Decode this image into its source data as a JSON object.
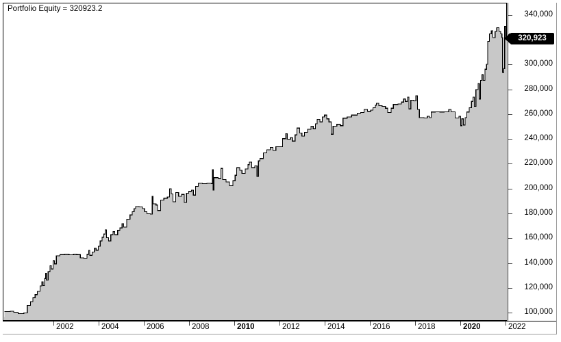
{
  "title": {
    "label": "Portfolio Equity = 320923.2"
  },
  "last_value_marker": {
    "label": "320,923",
    "value": 320923.2,
    "bg": "#000000",
    "text_color": "#ffffff"
  },
  "y_axis": {
    "ticks": [
      {
        "label": "340,000",
        "value": 340000
      },
      {
        "label": "300,000",
        "value": 300000
      },
      {
        "label": "280,000",
        "value": 280000
      },
      {
        "label": "260,000",
        "value": 260000
      },
      {
        "label": "240,000",
        "value": 240000
      },
      {
        "label": "220,000",
        "value": 220000
      },
      {
        "label": "200,000",
        "value": 200000
      },
      {
        "label": "180,000",
        "value": 180000
      },
      {
        "label": "160,000",
        "value": 160000
      },
      {
        "label": "140,000",
        "value": 140000
      },
      {
        "label": "120,000",
        "value": 120000
      },
      {
        "label": "100,000",
        "value": 100000
      }
    ]
  },
  "x_axis": {
    "ticks": [
      {
        "label": "2002",
        "year": 2002,
        "bold": false
      },
      {
        "label": "2004",
        "year": 2004,
        "bold": false
      },
      {
        "label": "2006",
        "year": 2006,
        "bold": false
      },
      {
        "label": "2008",
        "year": 2008,
        "bold": false
      },
      {
        "label": "2010",
        "year": 2010,
        "bold": true
      },
      {
        "label": "2012",
        "year": 2012,
        "bold": false
      },
      {
        "label": "2014",
        "year": 2014,
        "bold": false
      },
      {
        "label": "2016",
        "year": 2016,
        "bold": false
      },
      {
        "label": "2018",
        "year": 2018,
        "bold": false
      },
      {
        "label": "2020",
        "year": 2020,
        "bold": true
      },
      {
        "label": "2022",
        "year": 2022,
        "bold": false
      }
    ]
  },
  "colors": {
    "fill": "#c8c8c8",
    "line": "#000000",
    "tick": "#444444",
    "background": "#ffffff"
  },
  "chart_data": {
    "type": "area",
    "step": true,
    "title": "Portfolio Equity = 320923.2",
    "legend": [],
    "grid": false,
    "xlim": [
      1999.8,
      2022.1
    ],
    "ylim": [
      93400,
      349900
    ],
    "last_value": 320923.2,
    "points": [
      [
        1999.85,
        100800
      ],
      [
        2000.1,
        101200
      ],
      [
        2000.25,
        100300
      ],
      [
        2000.45,
        99200
      ],
      [
        2000.7,
        99800
      ],
      [
        2000.85,
        105800
      ],
      [
        2001.0,
        108800
      ],
      [
        2001.1,
        112000
      ],
      [
        2001.2,
        114500
      ],
      [
        2001.3,
        117200
      ],
      [
        2001.42,
        121500
      ],
      [
        2001.5,
        124800
      ],
      [
        2001.55,
        121800
      ],
      [
        2001.62,
        127500
      ],
      [
        2001.66,
        131800
      ],
      [
        2001.7,
        126300
      ],
      [
        2001.78,
        133000
      ],
      [
        2001.86,
        137800
      ],
      [
        2001.92,
        135200
      ],
      [
        2002.0,
        141800
      ],
      [
        2002.06,
        139300
      ],
      [
        2002.14,
        145800
      ],
      [
        2002.3,
        146800
      ],
      [
        2002.5,
        147000
      ],
      [
        2002.7,
        146600
      ],
      [
        2002.9,
        147000
      ],
      [
        2003.05,
        146800
      ],
      [
        2003.2,
        144200
      ],
      [
        2003.35,
        143800
      ],
      [
        2003.5,
        147000
      ],
      [
        2003.57,
        150200
      ],
      [
        2003.62,
        146200
      ],
      [
        2003.72,
        148800
      ],
      [
        2003.82,
        151800
      ],
      [
        2003.9,
        150300
      ],
      [
        2004.0,
        153500
      ],
      [
        2004.08,
        157800
      ],
      [
        2004.16,
        160800
      ],
      [
        2004.24,
        163300
      ],
      [
        2004.3,
        166800
      ],
      [
        2004.36,
        160500
      ],
      [
        2004.45,
        157800
      ],
      [
        2004.55,
        162800
      ],
      [
        2004.65,
        165300
      ],
      [
        2004.72,
        162800
      ],
      [
        2004.85,
        166300
      ],
      [
        2004.95,
        168300
      ],
      [
        2005.05,
        171800
      ],
      [
        2005.12,
        169000
      ],
      [
        2005.25,
        175300
      ],
      [
        2005.4,
        178800
      ],
      [
        2005.5,
        181300
      ],
      [
        2005.58,
        183800
      ],
      [
        2005.65,
        185500
      ],
      [
        2005.8,
        185300
      ],
      [
        2005.95,
        183800
      ],
      [
        2006.05,
        181300
      ],
      [
        2006.15,
        179800
      ],
      [
        2006.3,
        179500
      ],
      [
        2006.38,
        193800
      ],
      [
        2006.42,
        187800
      ],
      [
        2006.55,
        186800
      ],
      [
        2006.62,
        182300
      ],
      [
        2006.75,
        190800
      ],
      [
        2006.9,
        192300
      ],
      [
        2007.05,
        193300
      ],
      [
        2007.15,
        199800
      ],
      [
        2007.22,
        195800
      ],
      [
        2007.3,
        189300
      ],
      [
        2007.42,
        196800
      ],
      [
        2007.55,
        193800
      ],
      [
        2007.68,
        195300
      ],
      [
        2007.8,
        188800
      ],
      [
        2007.9,
        196300
      ],
      [
        2008.0,
        197800
      ],
      [
        2008.12,
        198800
      ],
      [
        2008.2,
        194800
      ],
      [
        2008.3,
        201800
      ],
      [
        2008.42,
        204300
      ],
      [
        2008.6,
        204000
      ],
      [
        2008.8,
        204300
      ],
      [
        2009.0,
        204000
      ],
      [
        2009.05,
        215300
      ],
      [
        2009.08,
        198800
      ],
      [
        2009.12,
        208800
      ],
      [
        2009.3,
        208300
      ],
      [
        2009.42,
        216300
      ],
      [
        2009.5,
        207300
      ],
      [
        2009.65,
        205300
      ],
      [
        2009.8,
        202300
      ],
      [
        2009.95,
        206300
      ],
      [
        2010.05,
        210800
      ],
      [
        2010.12,
        216800
      ],
      [
        2010.25,
        214800
      ],
      [
        2010.35,
        212300
      ],
      [
        2010.5,
        215800
      ],
      [
        2010.62,
        219300
      ],
      [
        2010.68,
        221300
      ],
      [
        2010.78,
        216800
      ],
      [
        2010.92,
        218300
      ],
      [
        2011.02,
        209800
      ],
      [
        2011.08,
        222300
      ],
      [
        2011.15,
        224300
      ],
      [
        2011.3,
        228800
      ],
      [
        2011.45,
        231300
      ],
      [
        2011.6,
        233300
      ],
      [
        2011.72,
        230800
      ],
      [
        2011.85,
        233800
      ],
      [
        2012.0,
        233800
      ],
      [
        2012.15,
        240300
      ],
      [
        2012.28,
        244300
      ],
      [
        2012.35,
        239800
      ],
      [
        2012.5,
        241300
      ],
      [
        2012.58,
        238300
      ],
      [
        2012.7,
        243300
      ],
      [
        2012.78,
        248800
      ],
      [
        2012.9,
        244800
      ],
      [
        2013.0,
        242300
      ],
      [
        2013.12,
        245300
      ],
      [
        2013.25,
        247800
      ],
      [
        2013.4,
        250300
      ],
      [
        2013.5,
        248300
      ],
      [
        2013.6,
        252300
      ],
      [
        2013.68,
        255800
      ],
      [
        2013.8,
        253800
      ],
      [
        2013.9,
        257800
      ],
      [
        2014.0,
        259300
      ],
      [
        2014.1,
        256300
      ],
      [
        2014.2,
        253800
      ],
      [
        2014.3,
        243800
      ],
      [
        2014.38,
        250300
      ],
      [
        2014.55,
        251800
      ],
      [
        2014.7,
        250800
      ],
      [
        2014.82,
        256800
      ],
      [
        2015.0,
        257800
      ],
      [
        2015.2,
        259300
      ],
      [
        2015.45,
        260800
      ],
      [
        2015.6,
        261300
      ],
      [
        2015.75,
        263800
      ],
      [
        2015.9,
        262300
      ],
      [
        2016.05,
        263300
      ],
      [
        2016.15,
        265300
      ],
      [
        2016.25,
        267300
      ],
      [
        2016.3,
        268800
      ],
      [
        2016.4,
        266800
      ],
      [
        2016.55,
        266300
      ],
      [
        2016.7,
        264800
      ],
      [
        2016.8,
        261300
      ],
      [
        2016.95,
        264800
      ],
      [
        2017.05,
        267800
      ],
      [
        2017.25,
        268300
      ],
      [
        2017.4,
        269800
      ],
      [
        2017.5,
        272300
      ],
      [
        2017.58,
        270300
      ],
      [
        2017.68,
        273800
      ],
      [
        2017.74,
        264300
      ],
      [
        2017.82,
        271300
      ],
      [
        2017.95,
        270800
      ],
      [
        2018.05,
        274800
      ],
      [
        2018.12,
        263800
      ],
      [
        2018.2,
        257300
      ],
      [
        2018.4,
        257000
      ],
      [
        2018.55,
        258300
      ],
      [
        2018.65,
        257300
      ],
      [
        2018.72,
        261800
      ],
      [
        2018.9,
        262000
      ],
      [
        2019.1,
        261800
      ],
      [
        2019.3,
        262000
      ],
      [
        2019.5,
        263800
      ],
      [
        2019.6,
        262000
      ],
      [
        2019.78,
        257000
      ],
      [
        2019.95,
        258300
      ],
      [
        2020.02,
        250800
      ],
      [
        2020.08,
        256300
      ],
      [
        2020.15,
        251300
      ],
      [
        2020.22,
        257300
      ],
      [
        2020.3,
        261800
      ],
      [
        2020.4,
        265300
      ],
      [
        2020.5,
        270300
      ],
      [
        2020.57,
        273800
      ],
      [
        2020.63,
        266300
      ],
      [
        2020.7,
        279800
      ],
      [
        2020.8,
        284800
      ],
      [
        2020.85,
        272300
      ],
      [
        2020.9,
        287300
      ],
      [
        2020.97,
        291800
      ],
      [
        2021.02,
        287300
      ],
      [
        2021.1,
        296300
      ],
      [
        2021.17,
        300300
      ],
      [
        2021.22,
        318800
      ],
      [
        2021.3,
        324800
      ],
      [
        2021.38,
        327300
      ],
      [
        2021.45,
        321800
      ],
      [
        2021.55,
        326800
      ],
      [
        2021.62,
        329800
      ],
      [
        2021.72,
        326800
      ],
      [
        2021.8,
        324800
      ],
      [
        2021.85,
        321800
      ],
      [
        2021.88,
        293800
      ],
      [
        2021.93,
        296800
      ],
      [
        2021.97,
        330800
      ],
      [
        2022.02,
        320923
      ]
    ]
  }
}
